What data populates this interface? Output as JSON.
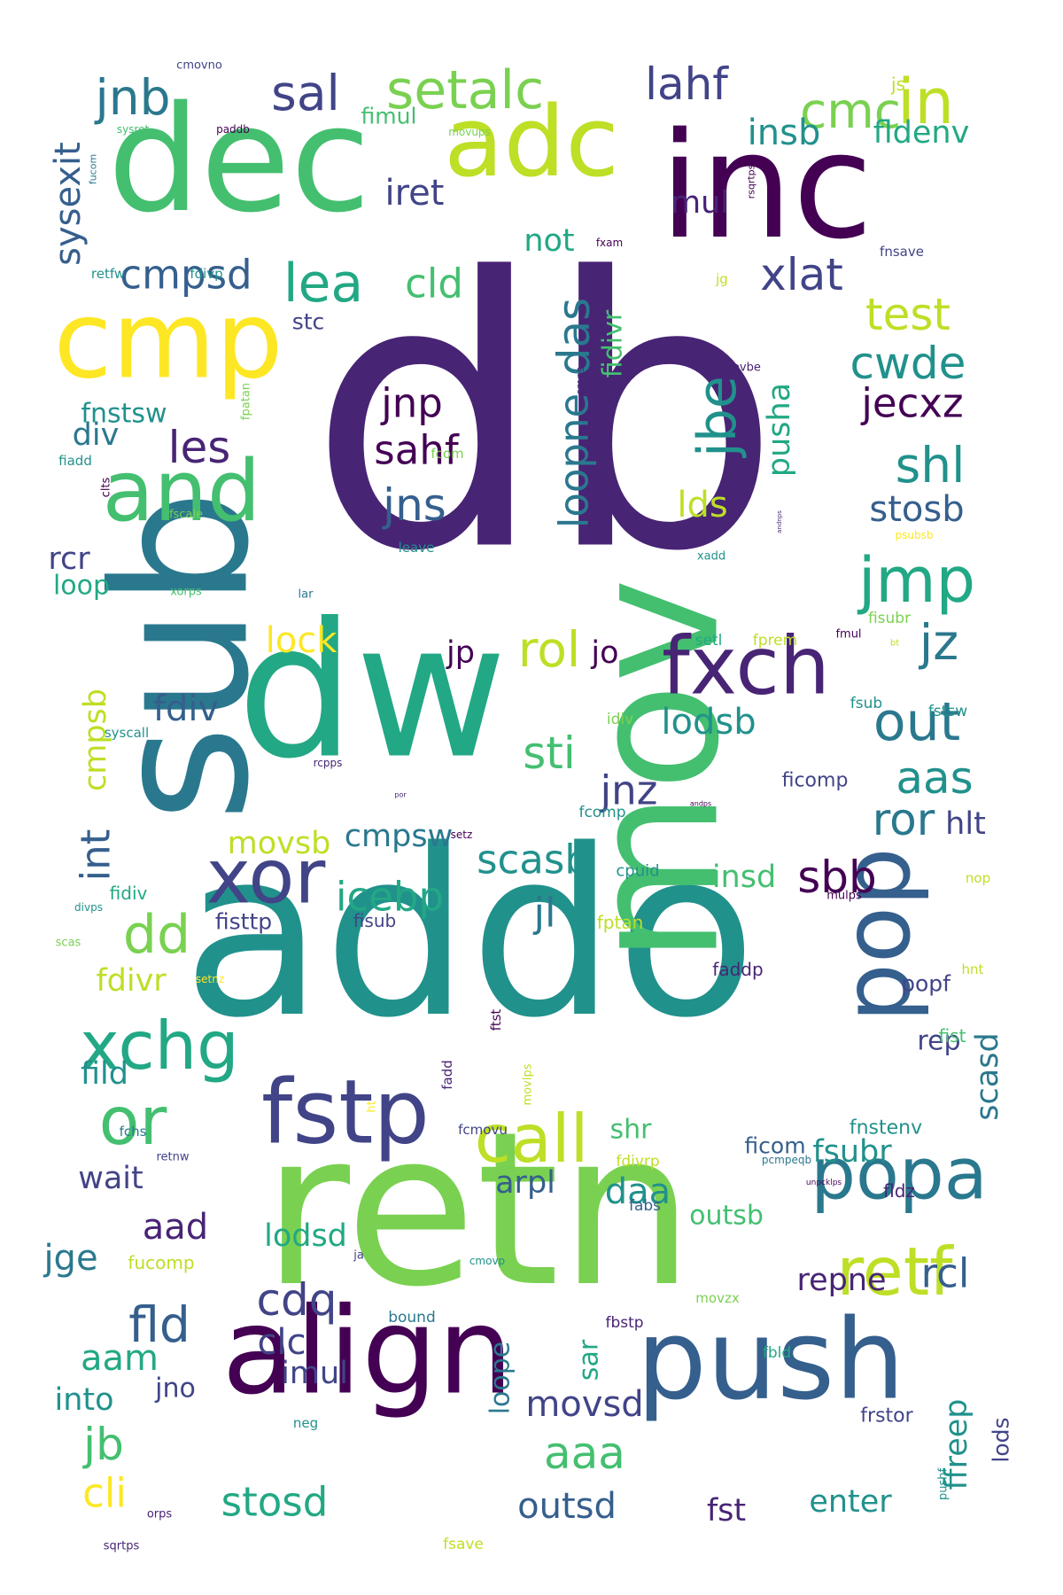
{
  "colors": {
    "background": "#ffffff",
    "palette": [
      "#440154",
      "#482475",
      "#414487",
      "#355f8d",
      "#2a788e",
      "#21918c",
      "#22a884",
      "#44bf70",
      "#7ad151",
      "#bddf26",
      "#fde725"
    ]
  },
  "words": [
    {
      "text": "db",
      "color": "#482475"
    },
    {
      "text": "addo",
      "color": "#21918c"
    },
    {
      "text": "retn",
      "color": "#7ad151"
    },
    {
      "text": "mov",
      "color": "#44bf70"
    },
    {
      "text": "dw",
      "color": "#22a884"
    },
    {
      "text": "sub",
      "color": "#2a788e"
    },
    {
      "text": "dec",
      "color": "#44bf70"
    },
    {
      "text": "inc",
      "color": "#440154"
    },
    {
      "text": "align",
      "color": "#440154"
    },
    {
      "text": "push",
      "color": "#355f8d"
    },
    {
      "text": "cmp",
      "color": "#fde725"
    },
    {
      "text": "adc",
      "color": "#bddf26"
    },
    {
      "text": "pop",
      "color": "#355f8d"
    },
    {
      "text": "fstp",
      "color": "#414487"
    },
    {
      "text": "and",
      "color": "#44bf70"
    },
    {
      "text": "fxch",
      "color": "#482475"
    },
    {
      "text": "xor",
      "color": "#414487"
    },
    {
      "text": "popa",
      "color": "#2a788e"
    },
    {
      "text": "call",
      "color": "#bddf26"
    },
    {
      "text": "retf",
      "color": "#bddf26"
    },
    {
      "text": "xchg",
      "color": "#22a884"
    },
    {
      "text": "or",
      "color": "#44bf70"
    },
    {
      "text": "jmp",
      "color": "#22a884"
    },
    {
      "text": "setalc",
      "color": "#7ad151"
    },
    {
      "text": "in",
      "color": "#bddf26"
    },
    {
      "text": "sal",
      "color": "#414487"
    },
    {
      "text": "jnb",
      "color": "#2a788e"
    },
    {
      "text": "lahf",
      "color": "#414487"
    },
    {
      "text": "cmc",
      "color": "#7ad151"
    },
    {
      "text": "lea",
      "color": "#22a884"
    },
    {
      "text": "cmpsd",
      "color": "#355f8d"
    },
    {
      "text": "cld",
      "color": "#44bf70"
    },
    {
      "text": "xlat",
      "color": "#414487"
    },
    {
      "text": "test",
      "color": "#bddf26"
    },
    {
      "text": "cwde",
      "color": "#21918c"
    },
    {
      "text": "jecxz",
      "color": "#440154"
    },
    {
      "text": "shl",
      "color": "#21918c"
    },
    {
      "text": "stosb",
      "color": "#355f8d"
    },
    {
      "text": "les",
      "color": "#482475"
    },
    {
      "text": "jnp",
      "color": "#440154"
    },
    {
      "text": "sahf",
      "color": "#440154"
    },
    {
      "text": "jns",
      "color": "#355f8d"
    },
    {
      "text": "jbe",
      "color": "#21918c"
    },
    {
      "text": "das",
      "color": "#2a788e"
    },
    {
      "text": "loopne",
      "color": "#2a788e"
    },
    {
      "text": "pusha",
      "color": "#22a884"
    },
    {
      "text": "lds",
      "color": "#bddf26"
    },
    {
      "text": "jz",
      "color": "#2a788e"
    },
    {
      "text": "out",
      "color": "#2a788e"
    },
    {
      "text": "aas",
      "color": "#21918c"
    },
    {
      "text": "ror",
      "color": "#2a788e"
    },
    {
      "text": "hlt",
      "color": "#414487"
    },
    {
      "text": "rol",
      "color": "#bddf26"
    },
    {
      "text": "jp",
      "color": "#440154"
    },
    {
      "text": "jo",
      "color": "#440154"
    },
    {
      "text": "sti",
      "color": "#44bf70"
    },
    {
      "text": "jnz",
      "color": "#414487"
    },
    {
      "text": "lodsb",
      "color": "#21918c"
    },
    {
      "text": "scasb",
      "color": "#21918c"
    },
    {
      "text": "icebp",
      "color": "#22a884"
    },
    {
      "text": "jl",
      "color": "#2a788e"
    },
    {
      "text": "sbb",
      "color": "#440154"
    },
    {
      "text": "insd",
      "color": "#44bf70"
    },
    {
      "text": "dd",
      "color": "#7ad151"
    },
    {
      "text": "int",
      "color": "#355f8d"
    },
    {
      "text": "cmpsb",
      "color": "#bddf26"
    },
    {
      "text": "fdiv",
      "color": "#355f8d"
    },
    {
      "text": "lock",
      "color": "#fde725"
    },
    {
      "text": "movsb",
      "color": "#bddf26"
    },
    {
      "text": "cmpsw",
      "color": "#2a788e"
    },
    {
      "text": "sysexit",
      "color": "#355f8d"
    },
    {
      "text": "iret",
      "color": "#414487"
    },
    {
      "text": "not",
      "color": "#22a884"
    },
    {
      "text": "mul",
      "color": "#482475"
    },
    {
      "text": "insb",
      "color": "#21918c"
    },
    {
      "text": "fldenv",
      "color": "#22a884"
    },
    {
      "text": "fidivr",
      "color": "#44bf70"
    },
    {
      "text": "div",
      "color": "#2a788e"
    },
    {
      "text": "rcr",
      "color": "#414487"
    },
    {
      "text": "loop",
      "color": "#22a884"
    },
    {
      "text": "fnstsw",
      "color": "#21918c"
    },
    {
      "text": "stc",
      "color": "#414487"
    },
    {
      "text": "fimul",
      "color": "#44bf70"
    },
    {
      "text": "js",
      "color": "#bddf26"
    },
    {
      "text": "fdivr",
      "color": "#bddf26"
    },
    {
      "text": "fild",
      "color": "#21918c"
    },
    {
      "text": "wait",
      "color": "#414487"
    },
    {
      "text": "shr",
      "color": "#44bf70"
    },
    {
      "text": "arpl",
      "color": "#355f8d"
    },
    {
      "text": "daa",
      "color": "#21918c"
    },
    {
      "text": "aad",
      "color": "#482475"
    },
    {
      "text": "lodsd",
      "color": "#22a884"
    },
    {
      "text": "outsb",
      "color": "#44bf70"
    },
    {
      "text": "fsubr",
      "color": "#21918c"
    },
    {
      "text": "scasd",
      "color": "#2a788e"
    },
    {
      "text": "rcl",
      "color": "#355f8d"
    },
    {
      "text": "repne",
      "color": "#482475"
    },
    {
      "text": "jge",
      "color": "#2a788e"
    },
    {
      "text": "cdq",
      "color": "#414487"
    },
    {
      "text": "fld",
      "color": "#355f8d"
    },
    {
      "text": "clc",
      "color": "#414487"
    },
    {
      "text": "aam",
      "color": "#22a884"
    },
    {
      "text": "imul",
      "color": "#414487"
    },
    {
      "text": "into",
      "color": "#21918c"
    },
    {
      "text": "jno",
      "color": "#414487"
    },
    {
      "text": "jb",
      "color": "#44bf70"
    },
    {
      "text": "cli",
      "color": "#fde725"
    },
    {
      "text": "stosd",
      "color": "#22a884"
    },
    {
      "text": "aaa",
      "color": "#44bf70"
    },
    {
      "text": "movsd",
      "color": "#414487"
    },
    {
      "text": "outsd",
      "color": "#355f8d"
    },
    {
      "text": "loope",
      "color": "#2a788e"
    },
    {
      "text": "sar",
      "color": "#22a884"
    },
    {
      "text": "enter",
      "color": "#21918c"
    },
    {
      "text": "fst",
      "color": "#482475"
    },
    {
      "text": "ffreep",
      "color": "#21918c"
    },
    {
      "text": "lods",
      "color": "#414487"
    },
    {
      "text": "rep",
      "color": "#414487"
    },
    {
      "text": "popf",
      "color": "#414487"
    },
    {
      "text": "fisttp",
      "color": "#414487"
    },
    {
      "text": "fidiv",
      "color": "#22a884"
    },
    {
      "text": "fisub",
      "color": "#414487"
    },
    {
      "text": "fptan",
      "color": "#bddf26"
    },
    {
      "text": "cpuid",
      "color": "#21918c"
    },
    {
      "text": "faddp",
      "color": "#482475"
    },
    {
      "text": "ficomp",
      "color": "#414487"
    },
    {
      "text": "fcomp",
      "color": "#21918c"
    },
    {
      "text": "idiv",
      "color": "#7ad151"
    },
    {
      "text": "fsub",
      "color": "#21918c"
    },
    {
      "text": "fstsw",
      "color": "#21918c"
    },
    {
      "text": "setl",
      "color": "#22a884"
    },
    {
      "text": "fprem",
      "color": "#bddf26"
    },
    {
      "text": "fisubr",
      "color": "#7ad151"
    },
    {
      "text": "fnstenv",
      "color": "#21918c"
    },
    {
      "text": "fist",
      "color": "#44bf70"
    },
    {
      "text": "fldz",
      "color": "#482475"
    },
    {
      "text": "ficom",
      "color": "#355f8d"
    },
    {
      "text": "fdivrp",
      "color": "#bddf26"
    },
    {
      "text": "fcmovu",
      "color": "#414487"
    },
    {
      "text": "fcom",
      "color": "#7ad151"
    },
    {
      "text": "fchs",
      "color": "#2a788e"
    },
    {
      "text": "fabs",
      "color": "#355f8d"
    },
    {
      "text": "fbstp",
      "color": "#482475"
    },
    {
      "text": "fbld",
      "color": "#22a884"
    },
    {
      "text": "frstor",
      "color": "#414487"
    },
    {
      "text": "fucomp",
      "color": "#bddf26"
    },
    {
      "text": "bound",
      "color": "#2a788e"
    },
    {
      "text": "fadd",
      "color": "#482475"
    },
    {
      "text": "ftst",
      "color": "#440154"
    },
    {
      "text": "neg",
      "color": "#21918c"
    },
    {
      "text": "pushf",
      "color": "#21918c"
    },
    {
      "text": "fsave",
      "color": "#bddf26"
    },
    {
      "text": "sqrtps",
      "color": "#482475"
    },
    {
      "text": "orps",
      "color": "#482475"
    },
    {
      "text": "hnt",
      "color": "#bddf26"
    },
    {
      "text": "nop",
      "color": "#bddf26"
    },
    {
      "text": "mulps",
      "color": "#440154"
    },
    {
      "text": "fmul",
      "color": "#440154"
    },
    {
      "text": "retfw",
      "color": "#21918c"
    },
    {
      "text": "fdivp",
      "color": "#21918c"
    },
    {
      "text": "fnsave",
      "color": "#414487"
    },
    {
      "text": "jg",
      "color": "#bddf26"
    },
    {
      "text": "cmovbe",
      "color": "#482475"
    },
    {
      "text": "fpatan",
      "color": "#7ad151"
    },
    {
      "text": "fiadd",
      "color": "#21918c"
    },
    {
      "text": "cmps",
      "color": "#482475"
    },
    {
      "text": "clts",
      "color": "#440154"
    },
    {
      "text": "fscale",
      "color": "#7ad151"
    },
    {
      "text": "leave",
      "color": "#21918c"
    },
    {
      "text": "xadd",
      "color": "#21918c"
    },
    {
      "text": "psubsb",
      "color": "#fde725"
    },
    {
      "text": "xorps",
      "color": "#44bf70"
    },
    {
      "text": "lar",
      "color": "#2a788e"
    },
    {
      "text": "bt",
      "color": "#bddf26"
    },
    {
      "text": "syscall",
      "color": "#21918c"
    },
    {
      "text": "rcpps",
      "color": "#482475"
    },
    {
      "text": "divps",
      "color": "#21918c"
    },
    {
      "text": "scas",
      "color": "#7ad151"
    },
    {
      "text": "setnz",
      "color": "#fde725"
    },
    {
      "text": "setz",
      "color": "#440154"
    },
    {
      "text": "retnw",
      "color": "#414487"
    },
    {
      "text": "ja",
      "color": "#414487"
    },
    {
      "text": "cmovp",
      "color": "#21918c"
    },
    {
      "text": "movzx",
      "color": "#7ad151"
    },
    {
      "text": "ht",
      "color": "#fde725"
    },
    {
      "text": "movlps",
      "color": "#bddf26"
    },
    {
      "text": "pcmpeqb",
      "color": "#2a788e"
    },
    {
      "text": "unpcklps",
      "color": "#440154"
    },
    {
      "text": "cmovno",
      "color": "#414487"
    },
    {
      "text": "sysret",
      "color": "#44bf70"
    },
    {
      "text": "paddb",
      "color": "#440154"
    },
    {
      "text": "movups",
      "color": "#7ad151"
    },
    {
      "text": "fucom",
      "color": "#2a788e"
    },
    {
      "text": "fxam",
      "color": "#440154"
    },
    {
      "text": "rsqrtps",
      "color": "#440154"
    },
    {
      "text": "andps",
      "color": "#440154"
    },
    {
      "text": "por",
      "color": "#482475"
    },
    {
      "text": "andnps",
      "color": "#482475"
    }
  ]
}
